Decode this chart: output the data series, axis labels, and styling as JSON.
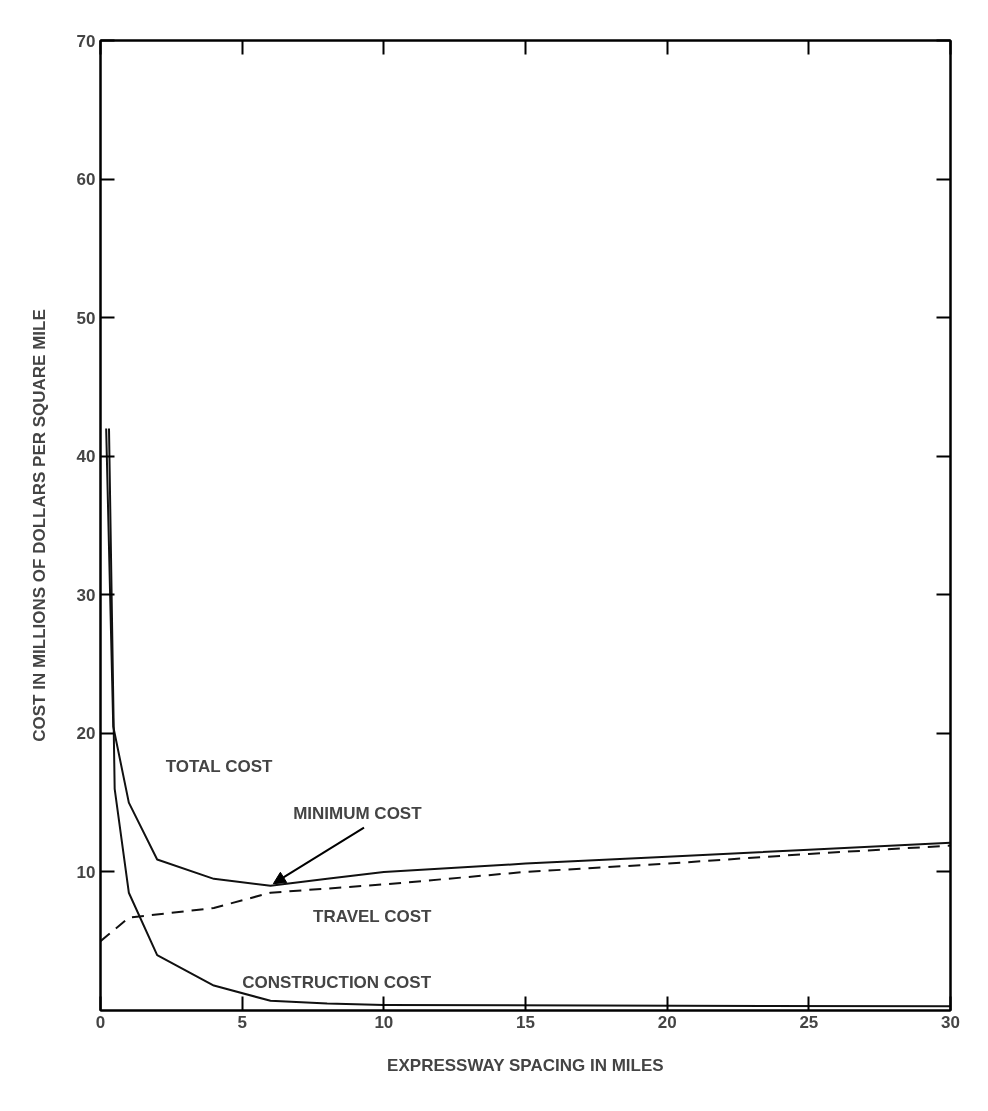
{
  "chart_data": {
    "type": "line",
    "xlabel": "EXPRESSWAY SPACING IN MILES",
    "ylabel": "COST IN MILLIONS OF DOLLARS PER SQUARE MILE",
    "series": [
      {
        "name": "TOTAL COST",
        "color": "#111111",
        "line_style": "solid",
        "x": [
          0.2,
          0.45,
          1,
          2,
          4,
          6,
          8,
          10,
          15,
          20,
          25,
          30
        ],
        "values": [
          42,
          20.5,
          15,
          10.9,
          9.5,
          9.0,
          9.5,
          10,
          10.6,
          11.1,
          11.6,
          12.1
        ]
      },
      {
        "name": "TRAVEL COST",
        "color": "#111111",
        "line_style": "dashed",
        "x": [
          0,
          1,
          4,
          6,
          10,
          15,
          20,
          25,
          30
        ],
        "values": [
          5,
          6.7,
          7.4,
          8.5,
          9.1,
          10,
          10.6,
          11.3,
          11.9
        ]
      },
      {
        "name": "CONSTRUCTION COST",
        "color": "#111111",
        "line_style": "solid",
        "x": [
          0.3,
          0.5,
          1,
          2,
          4,
          6,
          8,
          10,
          30
        ],
        "values": [
          42,
          16,
          8.5,
          4,
          1.8,
          0.7,
          0.5,
          0.4,
          0.3
        ]
      }
    ],
    "annotations": [
      {
        "text": "MINIMUM COST",
        "x": 6,
        "y": 9.0
      }
    ],
    "xlim": [
      0,
      30
    ],
    "ylim": [
      0,
      70
    ],
    "xticks": [
      0,
      5,
      10,
      15,
      20,
      25,
      30
    ],
    "yticks": [
      10,
      20,
      30,
      40,
      50,
      60,
      70
    ],
    "grid": false,
    "marker": "none"
  }
}
